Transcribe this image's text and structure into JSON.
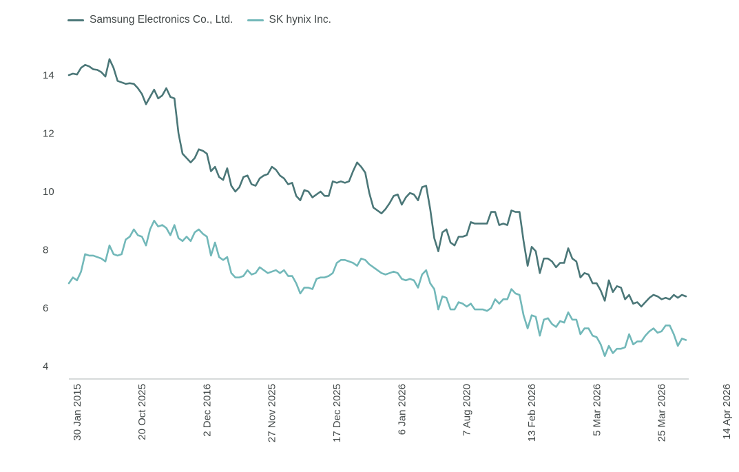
{
  "chart_data": {
    "type": "line",
    "title": "",
    "xlabel": "",
    "ylabel": "",
    "ylim": [
      4,
      14.7
    ],
    "yticks": [
      4,
      6,
      8,
      10,
      12,
      14
    ],
    "grid": false,
    "legend_position": "top-left",
    "x_tick_labels": [
      "30 Jan 2015",
      "20 Oct 2025",
      "2 Dec 2016",
      "27 Nov 2025",
      "17 Dec 2025",
      "6 Jan 2026",
      "7 Aug 2020",
      "13 Feb 2026",
      "5 Mar 2026",
      "25 Mar 2026",
      "14 Apr 2026"
    ],
    "x_tick_index": [
      2,
      18,
      34,
      50,
      66,
      82,
      98,
      114,
      130,
      146,
      162
    ],
    "series": [
      {
        "name": "Samsung Electronics Co., Ltd.",
        "color": "#4b7778",
        "values": [
          14.0,
          14.05,
          14.02,
          14.25,
          14.35,
          14.3,
          14.2,
          14.18,
          14.1,
          13.95,
          14.55,
          14.25,
          13.8,
          13.75,
          13.7,
          13.72,
          13.7,
          13.55,
          13.35,
          13.0,
          13.25,
          13.5,
          13.2,
          13.3,
          13.55,
          13.25,
          13.2,
          12.0,
          11.3,
          11.15,
          11.0,
          11.15,
          11.45,
          11.4,
          11.3,
          10.7,
          10.85,
          10.5,
          10.4,
          10.8,
          10.2,
          10.0,
          10.15,
          10.5,
          10.55,
          10.25,
          10.2,
          10.45,
          10.55,
          10.6,
          10.85,
          10.75,
          10.55,
          10.45,
          10.25,
          10.3,
          9.85,
          9.7,
          10.05,
          10.0,
          9.8,
          9.9,
          10.0,
          9.85,
          9.85,
          10.35,
          10.3,
          10.35,
          10.3,
          10.35,
          10.7,
          11.0,
          10.85,
          10.65,
          9.95,
          9.45,
          9.35,
          9.25,
          9.4,
          9.6,
          9.85,
          9.9,
          9.55,
          9.8,
          9.95,
          9.9,
          9.7,
          10.15,
          10.2,
          9.4,
          8.4,
          7.95,
          8.6,
          8.7,
          8.25,
          8.15,
          8.45,
          8.45,
          8.5,
          8.95,
          8.9,
          8.9,
          8.9,
          8.9,
          9.3,
          9.3,
          8.85,
          8.9,
          8.85,
          9.35,
          9.3,
          9.3,
          8.3,
          7.45,
          8.1,
          7.95,
          7.2,
          7.7,
          7.7,
          7.6,
          7.4,
          7.55,
          7.55,
          8.05,
          7.7,
          7.6,
          7.05,
          7.2,
          7.15,
          6.85,
          6.85,
          6.6,
          6.25,
          6.95,
          6.55,
          6.75,
          6.7,
          6.3,
          6.45,
          6.15,
          6.2,
          6.05,
          6.2,
          6.35,
          6.45,
          6.4,
          6.3,
          6.35,
          6.3,
          6.45,
          6.35,
          6.45,
          6.4
        ]
      },
      {
        "name": "SK hynix Inc.",
        "color": "#72b8b9",
        "values": [
          6.85,
          7.05,
          6.95,
          7.25,
          7.85,
          7.8,
          7.8,
          7.75,
          7.7,
          7.6,
          8.15,
          7.85,
          7.8,
          7.85,
          8.35,
          8.45,
          8.7,
          8.5,
          8.45,
          8.15,
          8.7,
          9.0,
          8.8,
          8.85,
          8.75,
          8.5,
          8.85,
          8.4,
          8.3,
          8.45,
          8.3,
          8.6,
          8.7,
          8.55,
          8.45,
          7.8,
          8.25,
          7.75,
          7.65,
          7.75,
          7.2,
          7.05,
          7.05,
          7.1,
          7.3,
          7.15,
          7.2,
          7.4,
          7.3,
          7.2,
          7.25,
          7.3,
          7.2,
          7.3,
          7.1,
          7.1,
          6.85,
          6.5,
          6.7,
          6.7,
          6.65,
          7.0,
          7.05,
          7.05,
          7.1,
          7.2,
          7.55,
          7.65,
          7.65,
          7.6,
          7.55,
          7.45,
          7.7,
          7.65,
          7.5,
          7.4,
          7.3,
          7.2,
          7.15,
          7.2,
          7.25,
          7.2,
          7.0,
          6.95,
          7.0,
          6.95,
          6.7,
          7.15,
          7.3,
          6.85,
          6.65,
          5.95,
          6.4,
          6.35,
          5.95,
          5.95,
          6.2,
          6.15,
          6.05,
          6.15,
          5.95,
          5.95,
          5.95,
          5.9,
          6.0,
          6.3,
          6.15,
          6.3,
          6.3,
          6.65,
          6.5,
          6.45,
          5.75,
          5.3,
          5.75,
          5.7,
          5.05,
          5.6,
          5.65,
          5.45,
          5.35,
          5.55,
          5.5,
          5.85,
          5.6,
          5.6,
          5.1,
          5.3,
          5.3,
          5.05,
          5.0,
          4.75,
          4.35,
          4.7,
          4.45,
          4.6,
          4.6,
          4.65,
          5.1,
          4.75,
          4.85,
          4.85,
          5.05,
          5.2,
          5.3,
          5.15,
          5.2,
          5.4,
          5.4,
          5.1,
          4.7,
          4.95,
          4.9
        ]
      }
    ]
  }
}
